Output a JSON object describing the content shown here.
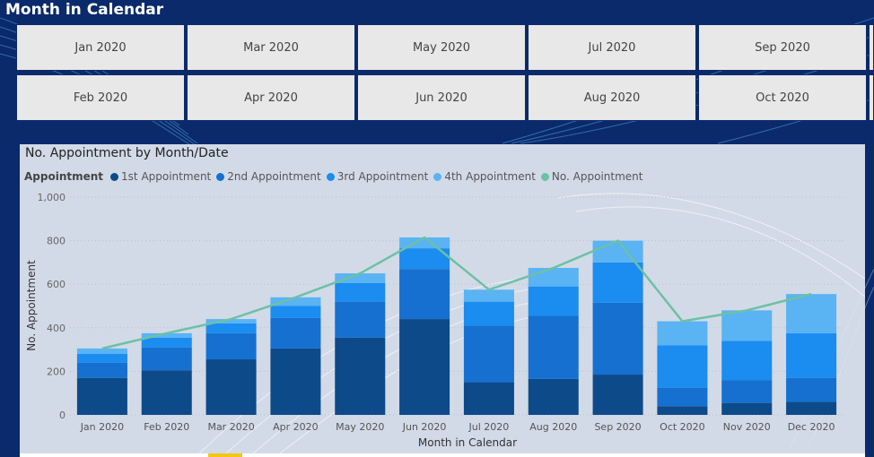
{
  "page": {
    "title": "Month in Calendar"
  },
  "slicer": {
    "rows": [
      [
        "Jan 2020",
        "Mar 2020",
        "May 2020",
        "Jul 2020",
        "Sep 2020"
      ],
      [
        "Feb 2020",
        "Apr 2020",
        "Jun 2020",
        "Aug 2020",
        "Oct 2020"
      ]
    ]
  },
  "colors": {
    "background": "#0b2a6b",
    "first": "#0d4a8a",
    "second": "#1570d0",
    "third": "#1b8cf0",
    "fourth": "#5ab3f3",
    "line": "#6cc1a4"
  },
  "chart_data": {
    "type": "bar",
    "stacked": true,
    "title": "No. Appointment by Month/Date",
    "xlabel": "Month in Calendar",
    "ylabel": "No. Appointment",
    "ylim": [
      0,
      1000
    ],
    "yticks": [
      "0",
      "200",
      "400",
      "600",
      "800",
      "1,000"
    ],
    "grid": true,
    "legend_title": "Appointment",
    "legend_position": "top-left",
    "categories": [
      "Jan 2020",
      "Feb 2020",
      "Mar 2020",
      "Apr 2020",
      "May 2020",
      "Jun 2020",
      "Jul 2020",
      "Aug 2020",
      "Sep 2020",
      "Oct 2020",
      "Nov 2020",
      "Dec 2020"
    ],
    "series": [
      {
        "name": "1st Appointment",
        "values": [
          170,
          205,
          255,
          305,
          355,
          440,
          150,
          165,
          185,
          40,
          55,
          60
        ]
      },
      {
        "name": "2nd Appointment",
        "values": [
          70,
          105,
          120,
          140,
          165,
          230,
          260,
          290,
          330,
          85,
          105,
          110
        ]
      },
      {
        "name": "3rd Appointment",
        "values": [
          40,
          45,
          45,
          55,
          85,
          95,
          110,
          135,
          185,
          195,
          180,
          205
        ]
      },
      {
        "name": "4th Appointment",
        "values": [
          25,
          20,
          20,
          40,
          45,
          50,
          55,
          85,
          100,
          110,
          140,
          180
        ]
      }
    ],
    "line_series": {
      "name": "No. Appointment",
      "values": [
        305,
        375,
        440,
        540,
        650,
        815,
        575,
        675,
        800,
        430,
        480,
        555
      ]
    }
  }
}
